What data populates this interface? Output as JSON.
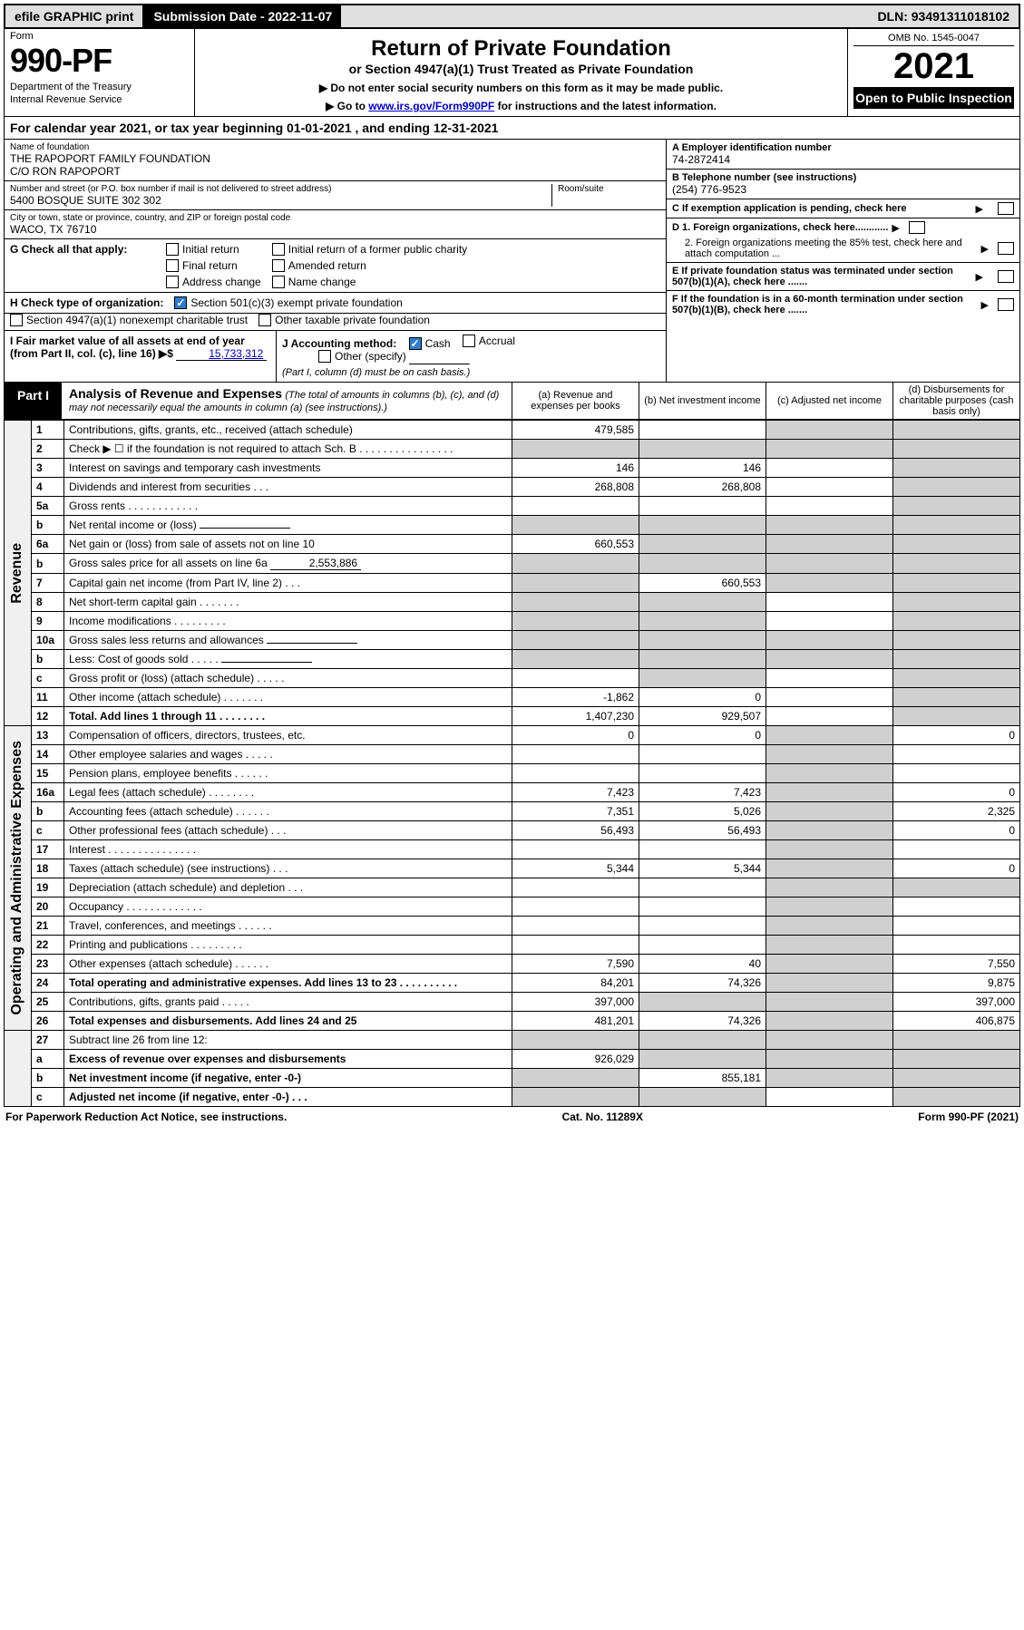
{
  "topbar": {
    "efile": "efile GRAPHIC print",
    "submission": "Submission Date - 2022-11-07",
    "dln": "DLN: 93491311018102"
  },
  "header": {
    "form_label": "Form",
    "form_no": "990-PF",
    "dept1": "Department of the Treasury",
    "dept2": "Internal Revenue Service",
    "title": "Return of Private Foundation",
    "subtitle": "or Section 4947(a)(1) Trust Treated as Private Foundation",
    "note1": "▶ Do not enter social security numbers on this form as it may be made public.",
    "note2_prefix": "▶ Go to ",
    "note2_link": "www.irs.gov/Form990PF",
    "note2_suffix": " for instructions and the latest information.",
    "omb": "OMB No. 1545-0047",
    "year": "2021",
    "open": "Open to Public Inspection"
  },
  "calyear": "For calendar year 2021, or tax year beginning 01-01-2021              , and ending 12-31-2021",
  "entity": {
    "name_lbl": "Name of foundation",
    "name1": "THE RAPOPORT FAMILY FOUNDATION",
    "name2": "C/O RON RAPOPORT",
    "addr_lbl": "Number and street (or P.O. box number if mail is not delivered to street address)",
    "room_lbl": "Room/suite",
    "addr": "5400 BOSQUE SUITE 302 302",
    "city_lbl": "City or town, state or province, country, and ZIP or foreign postal code",
    "city": "WACO, TX  76710",
    "a_lbl": "A Employer identification number",
    "a_val": "74-2872414",
    "b_lbl": "B Telephone number (see instructions)",
    "b_val": "(254) 776-9523",
    "c_lbl": "C If exemption application is pending, check here",
    "d1_lbl": "D 1. Foreign organizations, check here............",
    "d2_lbl": "2. Foreign organizations meeting the 85% test, check here and attach computation ...",
    "e_lbl": "E  If private foundation status was terminated under section 507(b)(1)(A), check here .......",
    "f_lbl": "F  If the foundation is in a 60-month termination under section 507(b)(1)(B), check here .......",
    "g_lbl": "G Check all that apply:",
    "g_opts": {
      "initial": "Initial return",
      "initial_former": "Initial return of a former public charity",
      "final": "Final return",
      "amended": "Amended return",
      "address": "Address change",
      "name": "Name change"
    },
    "h_lbl": "H Check type of organization:",
    "h1": "Section 501(c)(3) exempt private foundation",
    "h2": "Section 4947(a)(1) nonexempt charitable trust",
    "h3": "Other taxable private foundation",
    "i_lbl": "I Fair market value of all assets at end of year (from Part II, col. (c), line 16) ▶$",
    "i_val": "15,733,312",
    "j_lbl": "J Accounting method:",
    "j_cash": "Cash",
    "j_accrual": "Accrual",
    "j_other": "Other (specify)",
    "j_note": "(Part I, column (d) must be on cash basis.)"
  },
  "part1": {
    "tag": "Part I",
    "title": "Analysis of Revenue and Expenses",
    "title_note": "(The total of amounts in columns (b), (c), and (d) may not necessarily equal the amounts in column (a) (see instructions).)",
    "col_a": "(a)  Revenue and expenses per books",
    "col_b": "(b)  Net investment income",
    "col_c": "(c)  Adjusted net income",
    "col_d": "(d)  Disbursements for charitable purposes (cash basis only)",
    "rev_side": "Revenue",
    "exp_side": "Operating and Administrative Expenses"
  },
  "rows": [
    {
      "n": "1",
      "d": "Contributions, gifts, grants, etc., received (attach schedule)",
      "a": "479,585",
      "b": "",
      "c": "grey",
      "dd": "grey"
    },
    {
      "n": "2",
      "d": "Check ▶ ☐ if the foundation is not required to attach Sch. B  . . . . . . . . . . . . . . . .",
      "a": "grey",
      "b": "grey",
      "c": "grey",
      "dd": "grey"
    },
    {
      "n": "3",
      "d": "Interest on savings and temporary cash investments",
      "a": "146",
      "b": "146",
      "c": "",
      "dd": "grey"
    },
    {
      "n": "4",
      "d": "Dividends and interest from securities  .  .  .",
      "a": "268,808",
      "b": "268,808",
      "c": "",
      "dd": "grey"
    },
    {
      "n": "5a",
      "d": "Gross rents  .  .  .  .  .  .  .  .  .  .  .  .",
      "a": "",
      "b": "",
      "c": "",
      "dd": "grey"
    },
    {
      "n": "b",
      "d": "Net rental income or (loss)  ",
      "a": "grey",
      "b": "grey",
      "c": "grey",
      "dd": "grey",
      "inline": ""
    },
    {
      "n": "6a",
      "d": "Net gain or (loss) from sale of assets not on line 10",
      "a": "660,553",
      "b": "grey",
      "c": "grey",
      "dd": "grey"
    },
    {
      "n": "b",
      "d": "Gross sales price for all assets on line 6a",
      "a": "grey",
      "b": "grey",
      "c": "grey",
      "dd": "grey",
      "inline": "2,553,886"
    },
    {
      "n": "7",
      "d": "Capital gain net income (from Part IV, line 2)  .  .  .",
      "a": "grey",
      "b": "660,553",
      "c": "grey",
      "dd": "grey"
    },
    {
      "n": "8",
      "d": "Net short-term capital gain  .  .  .  .  .  .  .",
      "a": "grey",
      "b": "grey",
      "c": "",
      "dd": "grey"
    },
    {
      "n": "9",
      "d": "Income modifications  .  .  .  .  .  .  .  .  .",
      "a": "grey",
      "b": "grey",
      "c": "",
      "dd": "grey"
    },
    {
      "n": "10a",
      "d": "Gross sales less returns and allowances",
      "a": "grey",
      "b": "grey",
      "c": "grey",
      "dd": "grey",
      "inline": ""
    },
    {
      "n": "b",
      "d": "Less: Cost of goods sold  .  .  .  .  .",
      "a": "grey",
      "b": "grey",
      "c": "grey",
      "dd": "grey",
      "inline": ""
    },
    {
      "n": "c",
      "d": "Gross profit or (loss) (attach schedule)  .  .  .  .  .",
      "a": "",
      "b": "grey",
      "c": "",
      "dd": "grey"
    },
    {
      "n": "11",
      "d": "Other income (attach schedule)  .  .  .  .  .  .  .",
      "a": "-1,862",
      "b": "0",
      "c": "",
      "dd": "grey"
    },
    {
      "n": "12",
      "d": "Total. Add lines 1 through 11  .  .  .  .  .  .  .  .",
      "a": "1,407,230",
      "b": "929,507",
      "c": "",
      "dd": "grey",
      "bold": true
    }
  ],
  "exp_rows": [
    {
      "n": "13",
      "d": "Compensation of officers, directors, trustees, etc.",
      "a": "0",
      "b": "0",
      "c": "grey",
      "dd": "0"
    },
    {
      "n": "14",
      "d": "Other employee salaries and wages  .  .  .  .  .",
      "a": "",
      "b": "",
      "c": "grey",
      "dd": ""
    },
    {
      "n": "15",
      "d": "Pension plans, employee benefits  .  .  .  .  .  .",
      "a": "",
      "b": "",
      "c": "grey",
      "dd": ""
    },
    {
      "n": "16a",
      "d": "Legal fees (attach schedule)  .  .  .  .  .  .  .  .",
      "a": "7,423",
      "b": "7,423",
      "c": "grey",
      "dd": "0"
    },
    {
      "n": "b",
      "d": "Accounting fees (attach schedule)  .  .  .  .  .  .",
      "a": "7,351",
      "b": "5,026",
      "c": "grey",
      "dd": "2,325"
    },
    {
      "n": "c",
      "d": "Other professional fees (attach schedule)  .  .  .",
      "a": "56,493",
      "b": "56,493",
      "c": "grey",
      "dd": "0"
    },
    {
      "n": "17",
      "d": "Interest  .  .  .  .  .  .  .  .  .  .  .  .  .  .  .",
      "a": "",
      "b": "",
      "c": "grey",
      "dd": ""
    },
    {
      "n": "18",
      "d": "Taxes (attach schedule) (see instructions)  .  .  .",
      "a": "5,344",
      "b": "5,344",
      "c": "grey",
      "dd": "0"
    },
    {
      "n": "19",
      "d": "Depreciation (attach schedule) and depletion  .  .  .",
      "a": "",
      "b": "",
      "c": "grey",
      "dd": "grey"
    },
    {
      "n": "20",
      "d": "Occupancy  .  .  .  .  .  .  .  .  .  .  .  .  .",
      "a": "",
      "b": "",
      "c": "grey",
      "dd": ""
    },
    {
      "n": "21",
      "d": "Travel, conferences, and meetings  .  .  .  .  .  .",
      "a": "",
      "b": "",
      "c": "grey",
      "dd": ""
    },
    {
      "n": "22",
      "d": "Printing and publications  .  .  .  .  .  .  .  .  .",
      "a": "",
      "b": "",
      "c": "grey",
      "dd": ""
    },
    {
      "n": "23",
      "d": "Other expenses (attach schedule)  .  .  .  .  .  .",
      "a": "7,590",
      "b": "40",
      "c": "grey",
      "dd": "7,550"
    },
    {
      "n": "24",
      "d": "Total operating and administrative expenses. Add lines 13 to 23  .  .  .  .  .  .  .  .  .  .",
      "a": "84,201",
      "b": "74,326",
      "c": "grey",
      "dd": "9,875",
      "bold": true
    },
    {
      "n": "25",
      "d": "Contributions, gifts, grants paid  .  .  .  .  .",
      "a": "397,000",
      "b": "grey",
      "c": "grey",
      "dd": "397,000"
    },
    {
      "n": "26",
      "d": "Total expenses and disbursements. Add lines 24 and 25",
      "a": "481,201",
      "b": "74,326",
      "c": "grey",
      "dd": "406,875",
      "bold": true
    }
  ],
  "bottom_rows": [
    {
      "n": "27",
      "d": "Subtract line 26 from line 12:",
      "a": "grey",
      "b": "grey",
      "c": "grey",
      "dd": "grey"
    },
    {
      "n": "a",
      "d": "Excess of revenue over expenses and disbursements",
      "a": "926,029",
      "b": "grey",
      "c": "grey",
      "dd": "grey",
      "bold": true
    },
    {
      "n": "b",
      "d": "Net investment income (if negative, enter -0-)",
      "a": "grey",
      "b": "855,181",
      "c": "grey",
      "dd": "grey",
      "bold": true
    },
    {
      "n": "c",
      "d": "Adjusted net income (if negative, enter -0-)  .  .  .",
      "a": "grey",
      "b": "grey",
      "c": "",
      "dd": "grey",
      "bold": true
    }
  ],
  "footer": {
    "left": "For Paperwork Reduction Act Notice, see instructions.",
    "mid": "Cat. No. 11289X",
    "right": "Form 990-PF (2021)"
  }
}
